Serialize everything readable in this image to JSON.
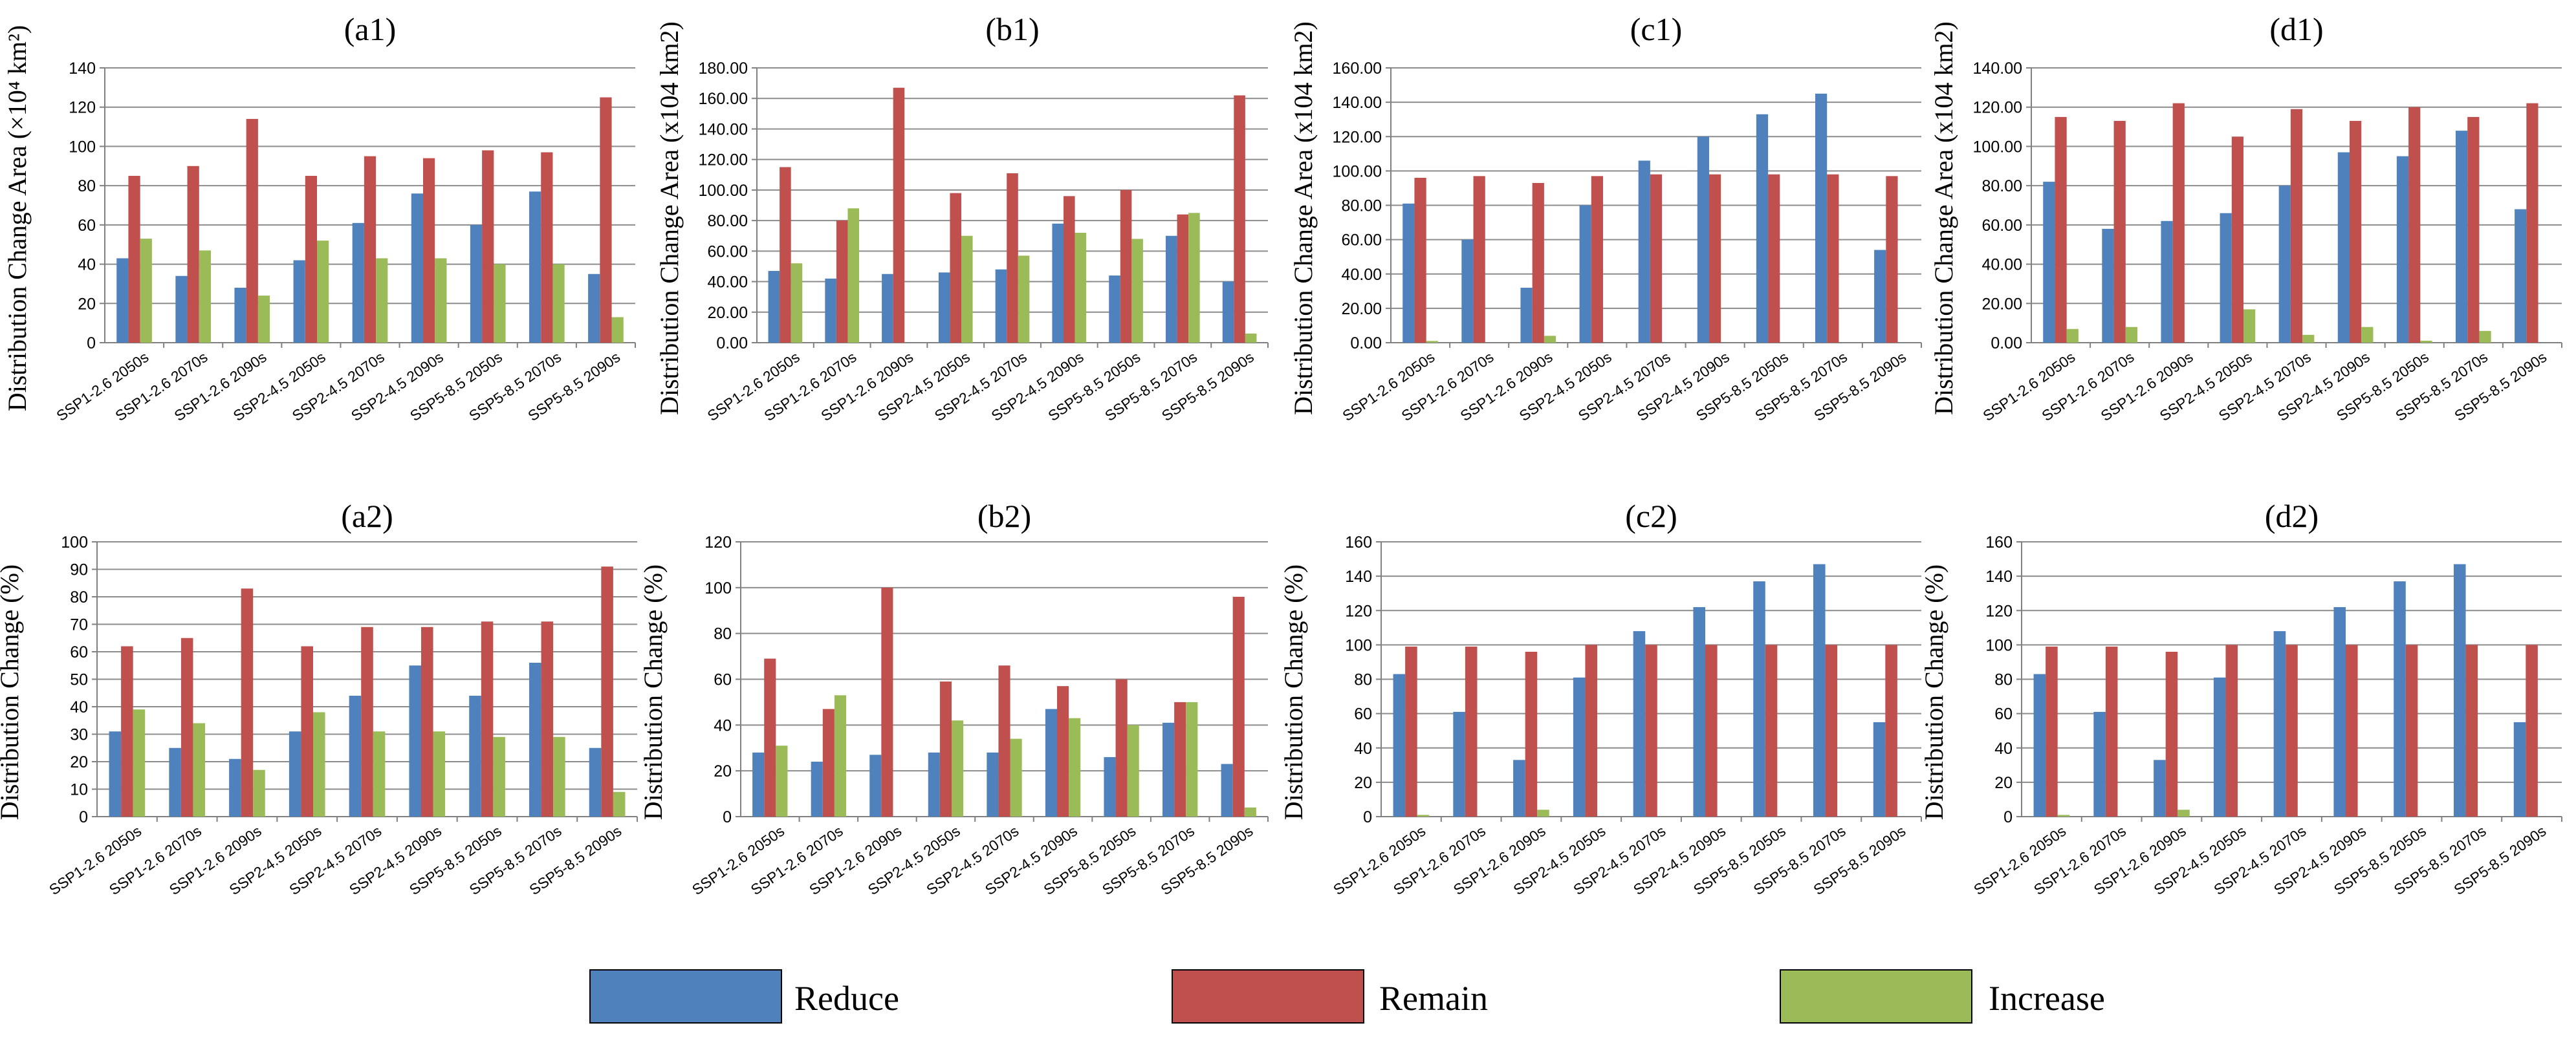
{
  "figure": {
    "background": "#ffffff"
  },
  "colors": {
    "Reduce": "#4f81bd",
    "Remain": "#c0504d",
    "Increase": "#9bbb59",
    "grid": "#8c8c8c",
    "axis": "#808080"
  },
  "legend": [
    {
      "name": "Reduce",
      "color": "#4f81bd"
    },
    {
      "name": "Remain",
      "color": "#c0504d"
    },
    {
      "name": "Increase",
      "color": "#9bbb59"
    }
  ],
  "chart_data": [
    {
      "id": "a1",
      "type": "bar",
      "title": "(a1)",
      "ylabel": "Distribution Change Area (×10⁴ km²)",
      "ylim": [
        0,
        140
      ],
      "ytick_step": 20,
      "ytick_decimals": 0,
      "categories": [
        "SSP1-2.6 2050s",
        "SSP1-2.6 2070s",
        "SSP1-2.6 2090s",
        "SSP2-4.5 2050s",
        "SSP2-4.5 2070s",
        "SSP2-4.5 2090s",
        "SSP5-8.5 2050s",
        "SSP5-8.5 2070s",
        "SSP5-8.5 2090s"
      ],
      "series": [
        {
          "name": "Reduce",
          "values": [
            43,
            34,
            28,
            42,
            61,
            76,
            60,
            77,
            35
          ]
        },
        {
          "name": "Remain",
          "values": [
            85,
            90,
            114,
            85,
            95,
            94,
            98,
            97,
            125
          ]
        },
        {
          "name": "Increase",
          "values": [
            53,
            47,
            24,
            52,
            43,
            43,
            40,
            40,
            13
          ]
        }
      ]
    },
    {
      "id": "b1",
      "type": "bar",
      "title": "(b1)",
      "ylabel": "Distribution Change Area (x104 km2)",
      "ylim": [
        0,
        180
      ],
      "ytick_step": 20,
      "ytick_decimals": 2,
      "categories": [
        "SSP1-2.6 2050s",
        "SSP1-2.6 2070s",
        "SSP1-2.6 2090s",
        "SSP2-4.5 2050s",
        "SSP2-4.5 2070s",
        "SSP2-4.5 2090s",
        "SSP5-8.5 2050s",
        "SSP5-8.5 2070s",
        "SSP5-8.5 2090s"
      ],
      "series": [
        {
          "name": "Reduce",
          "values": [
            47,
            42,
            45,
            46,
            48,
            78,
            44,
            70,
            40
          ]
        },
        {
          "name": "Remain",
          "values": [
            115,
            80,
            167,
            98,
            111,
            96,
            100,
            84,
            162
          ]
        },
        {
          "name": "Increase",
          "values": [
            52,
            88,
            0,
            70,
            57,
            72,
            68,
            85,
            6
          ]
        }
      ]
    },
    {
      "id": "c1",
      "type": "bar",
      "title": "(c1)",
      "ylabel": "Distribution Change Area (x104 km2)",
      "ylim": [
        0,
        160
      ],
      "ytick_step": 20,
      "ytick_decimals": 2,
      "categories": [
        "SSP1-2.6 2050s",
        "SSP1-2.6 2070s",
        "SSP1-2.6 2090s",
        "SSP2-4.5 2050s",
        "SSP2-4.5 2070s",
        "SSP2-4.5 2090s",
        "SSP5-8.5 2050s",
        "SSP5-8.5 2070s",
        "SSP5-8.5 2090s"
      ],
      "series": [
        {
          "name": "Reduce",
          "values": [
            81,
            60,
            32,
            80,
            106,
            120,
            133,
            145,
            54
          ]
        },
        {
          "name": "Remain",
          "values": [
            96,
            97,
            93,
            97,
            98,
            98,
            98,
            98,
            97
          ]
        },
        {
          "name": "Increase",
          "values": [
            1,
            0,
            4,
            0,
            0,
            0,
            0,
            0,
            0
          ]
        }
      ]
    },
    {
      "id": "d1",
      "type": "bar",
      "title": "(d1)",
      "ylabel": "Distribution Change Area (x104 km2)",
      "ylim": [
        0,
        140
      ],
      "ytick_step": 20,
      "ytick_decimals": 2,
      "categories": [
        "SSP1-2.6 2050s",
        "SSP1-2.6 2070s",
        "SSP1-2.6 2090s",
        "SSP2-4.5 2050s",
        "SSP2-4.5 2070s",
        "SSP2-4.5 2090s",
        "SSP5-8.5 2050s",
        "SSP5-8.5 2070s",
        "SSP5-8.5 2090s"
      ],
      "series": [
        {
          "name": "Reduce",
          "values": [
            82,
            58,
            62,
            66,
            80,
            97,
            95,
            108,
            68
          ]
        },
        {
          "name": "Remain",
          "values": [
            115,
            113,
            122,
            105,
            119,
            113,
            120,
            115,
            122
          ]
        },
        {
          "name": "Increase",
          "values": [
            7,
            8,
            0,
            17,
            4,
            8,
            1,
            6,
            0
          ]
        }
      ]
    },
    {
      "id": "a2",
      "type": "bar",
      "title": "(a2)",
      "ylabel": "Distribution Change (%)",
      "ylim": [
        0,
        100
      ],
      "ytick_step": 10,
      "ytick_decimals": 0,
      "categories": [
        "SSP1-2.6 2050s",
        "SSP1-2.6 2070s",
        "SSP1-2.6 2090s",
        "SSP2-4.5 2050s",
        "SSP2-4.5 2070s",
        "SSP2-4.5 2090s",
        "SSP5-8.5 2050s",
        "SSP5-8.5 2070s",
        "SSP5-8.5 2090s"
      ],
      "series": [
        {
          "name": "Reduce",
          "values": [
            31,
            25,
            21,
            31,
            44,
            55,
            44,
            56,
            25
          ]
        },
        {
          "name": "Remain",
          "values": [
            62,
            65,
            83,
            62,
            69,
            69,
            71,
            71,
            91
          ]
        },
        {
          "name": "Increase",
          "values": [
            39,
            34,
            17,
            38,
            31,
            31,
            29,
            29,
            9
          ]
        }
      ]
    },
    {
      "id": "b2",
      "type": "bar",
      "title": "(b2)",
      "ylabel": "Distribution Change (%)",
      "ylim": [
        0,
        120
      ],
      "ytick_step": 20,
      "ytick_decimals": 0,
      "categories": [
        "SSP1-2.6 2050s",
        "SSP1-2.6 2070s",
        "SSP1-2.6 2090s",
        "SSP2-4.5 2050s",
        "SSP2-4.5 2070s",
        "SSP2-4.5 2090s",
        "SSP5-8.5 2050s",
        "SSP5-8.5 2070s",
        "SSP5-8.5 2090s"
      ],
      "series": [
        {
          "name": "Reduce",
          "values": [
            28,
            24,
            27,
            28,
            28,
            47,
            26,
            41,
            23
          ]
        },
        {
          "name": "Remain",
          "values": [
            69,
            47,
            100,
            59,
            66,
            57,
            60,
            50,
            96
          ]
        },
        {
          "name": "Increase",
          "values": [
            31,
            53,
            0,
            42,
            34,
            43,
            40,
            50,
            4
          ]
        }
      ]
    },
    {
      "id": "c2",
      "type": "bar",
      "title": "(c2)",
      "ylabel": "Distribution Change (%)",
      "ylim": [
        0,
        160
      ],
      "ytick_step": 20,
      "ytick_decimals": 0,
      "categories": [
        "SSP1-2.6 2050s",
        "SSP1-2.6 2070s",
        "SSP1-2.6 2090s",
        "SSP2-4.5 2050s",
        "SSP2-4.5 2070s",
        "SSP2-4.5 2090s",
        "SSP5-8.5 2050s",
        "SSP5-8.5 2070s",
        "SSP5-8.5 2090s"
      ],
      "series": [
        {
          "name": "Reduce",
          "values": [
            83,
            61,
            33,
            81,
            108,
            122,
            137,
            147,
            55
          ]
        },
        {
          "name": "Remain",
          "values": [
            99,
            99,
            96,
            100,
            100,
            100,
            100,
            100,
            100
          ]
        },
        {
          "name": "Increase",
          "values": [
            1,
            0,
            4,
            0,
            0,
            0,
            0,
            0,
            0
          ]
        }
      ]
    },
    {
      "id": "d2",
      "type": "bar",
      "title": "(d2)",
      "ylabel": "Distribution Change (%)",
      "ylim": [
        0,
        160
      ],
      "ytick_step": 20,
      "ytick_decimals": 0,
      "categories": [
        "SSP1-2.6 2050s",
        "SSP1-2.6 2070s",
        "SSP1-2.6 2090s",
        "SSP2-4.5 2050s",
        "SSP2-4.5 2070s",
        "SSP2-4.5 2090s",
        "SSP5-8.5 2050s",
        "SSP5-8.5 2070s",
        "SSP5-8.5 2090s"
      ],
      "series": [
        {
          "name": "Reduce",
          "values": [
            83,
            61,
            33,
            81,
            108,
            122,
            137,
            147,
            55
          ]
        },
        {
          "name": "Remain",
          "values": [
            99,
            99,
            96,
            100,
            100,
            100,
            100,
            100,
            100
          ]
        },
        {
          "name": "Increase",
          "values": [
            1,
            0,
            4,
            0,
            0,
            0,
            0,
            0,
            0
          ]
        }
      ]
    }
  ]
}
